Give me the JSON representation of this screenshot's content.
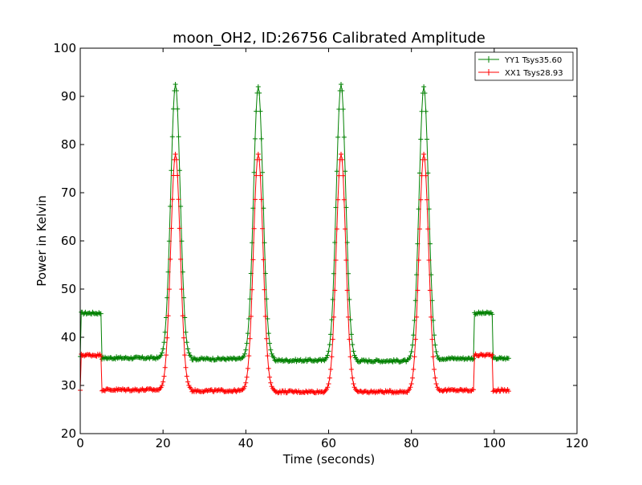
{
  "chart_data": {
    "type": "line",
    "title": "moon_OH2, ID:26756 Calibrated Amplitude",
    "xlabel": "Time (seconds)",
    "ylabel": "Power in Kelvin",
    "xlim": [
      0,
      120
    ],
    "ylim": [
      20,
      100
    ],
    "xticks": [
      "0",
      "20",
      "40",
      "60",
      "80",
      "100",
      "120"
    ],
    "yticks": [
      "20",
      "30",
      "40",
      "50",
      "60",
      "70",
      "80",
      "90",
      "100"
    ],
    "grid": false,
    "legend_position": "top-right",
    "marker": "plus",
    "series": [
      {
        "name": "YY1 Tsys35.60",
        "color": "#008000",
        "baseline_segments": [
          {
            "x": [
              0,
              5
            ],
            "y": 45.0
          },
          {
            "x": [
              5.3,
              20
            ],
            "y": 35.7
          },
          {
            "x": [
              26,
              40
            ],
            "y": 35.5
          },
          {
            "x": [
              46,
              60
            ],
            "y": 35.2
          },
          {
            "x": [
              66,
              80
            ],
            "y": 35.1
          },
          {
            "x": [
              86,
              95
            ],
            "y": 35.6
          },
          {
            "x": [
              95.3,
              99.5
            ],
            "y": 45.0
          },
          {
            "x": [
              99.8,
              103.5
            ],
            "y": 35.6
          }
        ],
        "peaks": [
          {
            "x": 23.0,
            "y": 92.5
          },
          {
            "x": 43.0,
            "y": 92.0
          },
          {
            "x": 63.0,
            "y": 92.5
          },
          {
            "x": 83.0,
            "y": 92.0
          }
        ],
        "start_value": 36
      },
      {
        "name": "XX1 Tsys28.93",
        "color": "#ff0000",
        "baseline_segments": [
          {
            "x": [
              0,
              5
            ],
            "y": 36.3
          },
          {
            "x": [
              5.3,
              20
            ],
            "y": 29.1
          },
          {
            "x": [
              26,
              40
            ],
            "y": 28.9
          },
          {
            "x": [
              46,
              60
            ],
            "y": 28.7
          },
          {
            "x": [
              66,
              80
            ],
            "y": 28.7
          },
          {
            "x": [
              86,
              95
            ],
            "y": 29.0
          },
          {
            "x": [
              95.3,
              99.5
            ],
            "y": 36.3
          },
          {
            "x": [
              99.8,
              103.5
            ],
            "y": 29.0
          }
        ],
        "peaks": [
          {
            "x": 23.0,
            "y": 78.0
          },
          {
            "x": 43.0,
            "y": 78.0
          },
          {
            "x": 63.0,
            "y": 78.0
          },
          {
            "x": 83.0,
            "y": 78.0
          }
        ],
        "start_value": 29
      }
    ]
  }
}
